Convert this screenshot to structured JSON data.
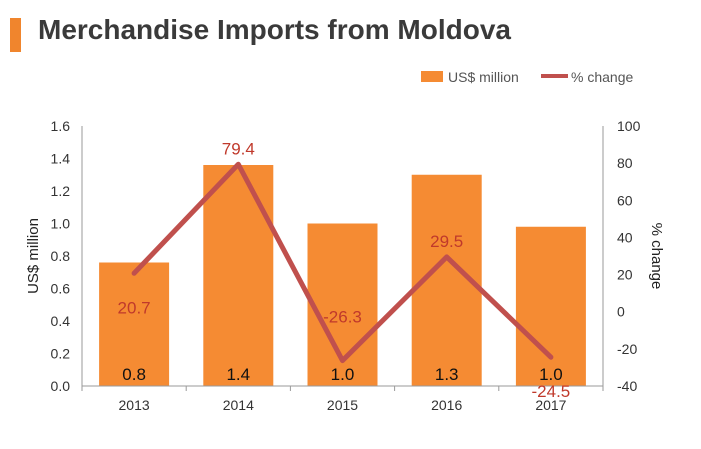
{
  "header": {
    "title": "Merchandise Imports from Moldova"
  },
  "colors": {
    "accent": "#f0852d",
    "bar": "#f58b33",
    "line": "#c0504d",
    "pct_text": "#c0392b"
  },
  "chart_data": {
    "type": "bar",
    "categories": [
      "2013",
      "2014",
      "2015",
      "2016",
      "2017"
    ],
    "series": [
      {
        "name": "US$ million",
        "type": "bar",
        "axis": "left",
        "values": [
          0.76,
          1.36,
          1.0,
          1.3,
          0.98
        ],
        "labels": [
          "0.8",
          "1.4",
          "1.0",
          "1.3",
          "1.0"
        ]
      },
      {
        "name": "% change",
        "type": "line",
        "axis": "right",
        "values": [
          20.7,
          79.4,
          -26.3,
          29.5,
          -24.5
        ],
        "labels": [
          "20.7",
          "79.4",
          "-26.3",
          "29.5",
          "-24.5"
        ]
      }
    ],
    "ylabel": "US$ million",
    "ylim": [
      0,
      1.6
    ],
    "yticks": [
      "0.0",
      "0.2",
      "0.4",
      "0.6",
      "0.8",
      "1.0",
      "1.2",
      "1.4",
      "1.6"
    ],
    "y2label": "% change",
    "y2lim": [
      -40,
      100
    ],
    "y2ticks": [
      "-40",
      "-20",
      "0",
      "20",
      "40",
      "60",
      "80",
      "100"
    ],
    "grid": false,
    "legend": "top-right"
  }
}
